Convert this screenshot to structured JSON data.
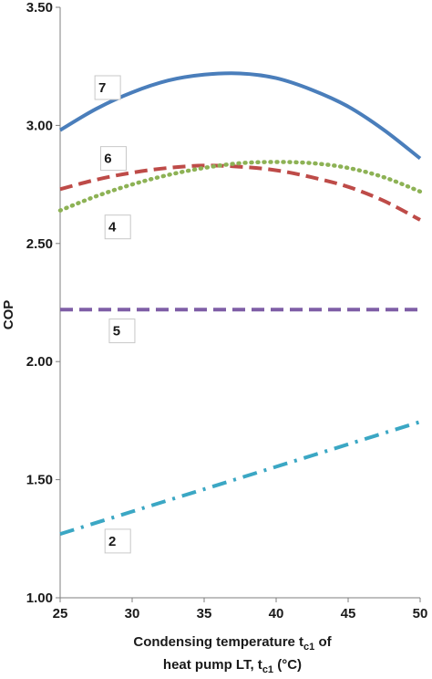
{
  "chart_data": {
    "type": "line",
    "xlabel": "Condensing temperature t_c1 of heat pump LT, t_c1 (°C)",
    "xlabel_line1": "Condensing temperature t",
    "xlabel_sub1": "c1",
    "xlabel_line1_tail": " of",
    "xlabel_line2": "heat pump LT, t",
    "xlabel_sub2": "c1",
    "xlabel_line2_tail": " (°C)",
    "ylabel": "COP",
    "xlim": [
      25,
      50
    ],
    "ylim": [
      1.0,
      3.5
    ],
    "xticks": [
      25,
      30,
      35,
      40,
      45,
      50
    ],
    "yticks": [
      "1.00",
      "1.50",
      "2.00",
      "2.50",
      "3.00",
      "3.50"
    ],
    "grid": false,
    "legend": "none",
    "series": [
      {
        "name": "7",
        "style": "solid",
        "color": "#4a7ebb",
        "x": [
          25,
          27.5,
          30,
          32.5,
          35,
          37.5,
          40,
          42.5,
          45,
          47.5,
          50
        ],
        "y": [
          2.98,
          3.07,
          3.14,
          3.19,
          3.215,
          3.22,
          3.2,
          3.15,
          3.08,
          2.98,
          2.86
        ]
      },
      {
        "name": "6",
        "style": "dashed",
        "color": "#be4b48",
        "x": [
          25,
          27.5,
          30,
          32.5,
          35,
          37.5,
          40,
          42.5,
          45,
          47.5,
          50
        ],
        "y": [
          2.73,
          2.77,
          2.8,
          2.82,
          2.83,
          2.825,
          2.81,
          2.78,
          2.74,
          2.68,
          2.6
        ]
      },
      {
        "name": "4",
        "style": "dotted",
        "color": "#8db255",
        "x": [
          25,
          27.5,
          30,
          32.5,
          35,
          37.5,
          40,
          42.5,
          45,
          47.5,
          50
        ],
        "y": [
          2.64,
          2.7,
          2.75,
          2.79,
          2.82,
          2.84,
          2.845,
          2.84,
          2.82,
          2.78,
          2.72
        ]
      },
      {
        "name": "5",
        "style": "dashed",
        "color": "#7f5ea6",
        "x": [
          25,
          50
        ],
        "y": [
          2.22,
          2.22
        ]
      },
      {
        "name": "2",
        "style": "dash-dot",
        "color": "#3ba7c4",
        "x": [
          25,
          30,
          35,
          40,
          45,
          50
        ],
        "y": [
          1.27,
          1.365,
          1.46,
          1.555,
          1.65,
          1.745
        ]
      }
    ],
    "annotations": [
      {
        "text": "7",
        "x": 28.3,
        "y": 3.16
      },
      {
        "text": "6",
        "x": 28.7,
        "y": 2.86
      },
      {
        "text": "4",
        "x": 29.0,
        "y": 2.57
      },
      {
        "text": "5",
        "x": 29.3,
        "y": 2.13
      },
      {
        "text": "2",
        "x": 29.0,
        "y": 1.24
      }
    ]
  }
}
